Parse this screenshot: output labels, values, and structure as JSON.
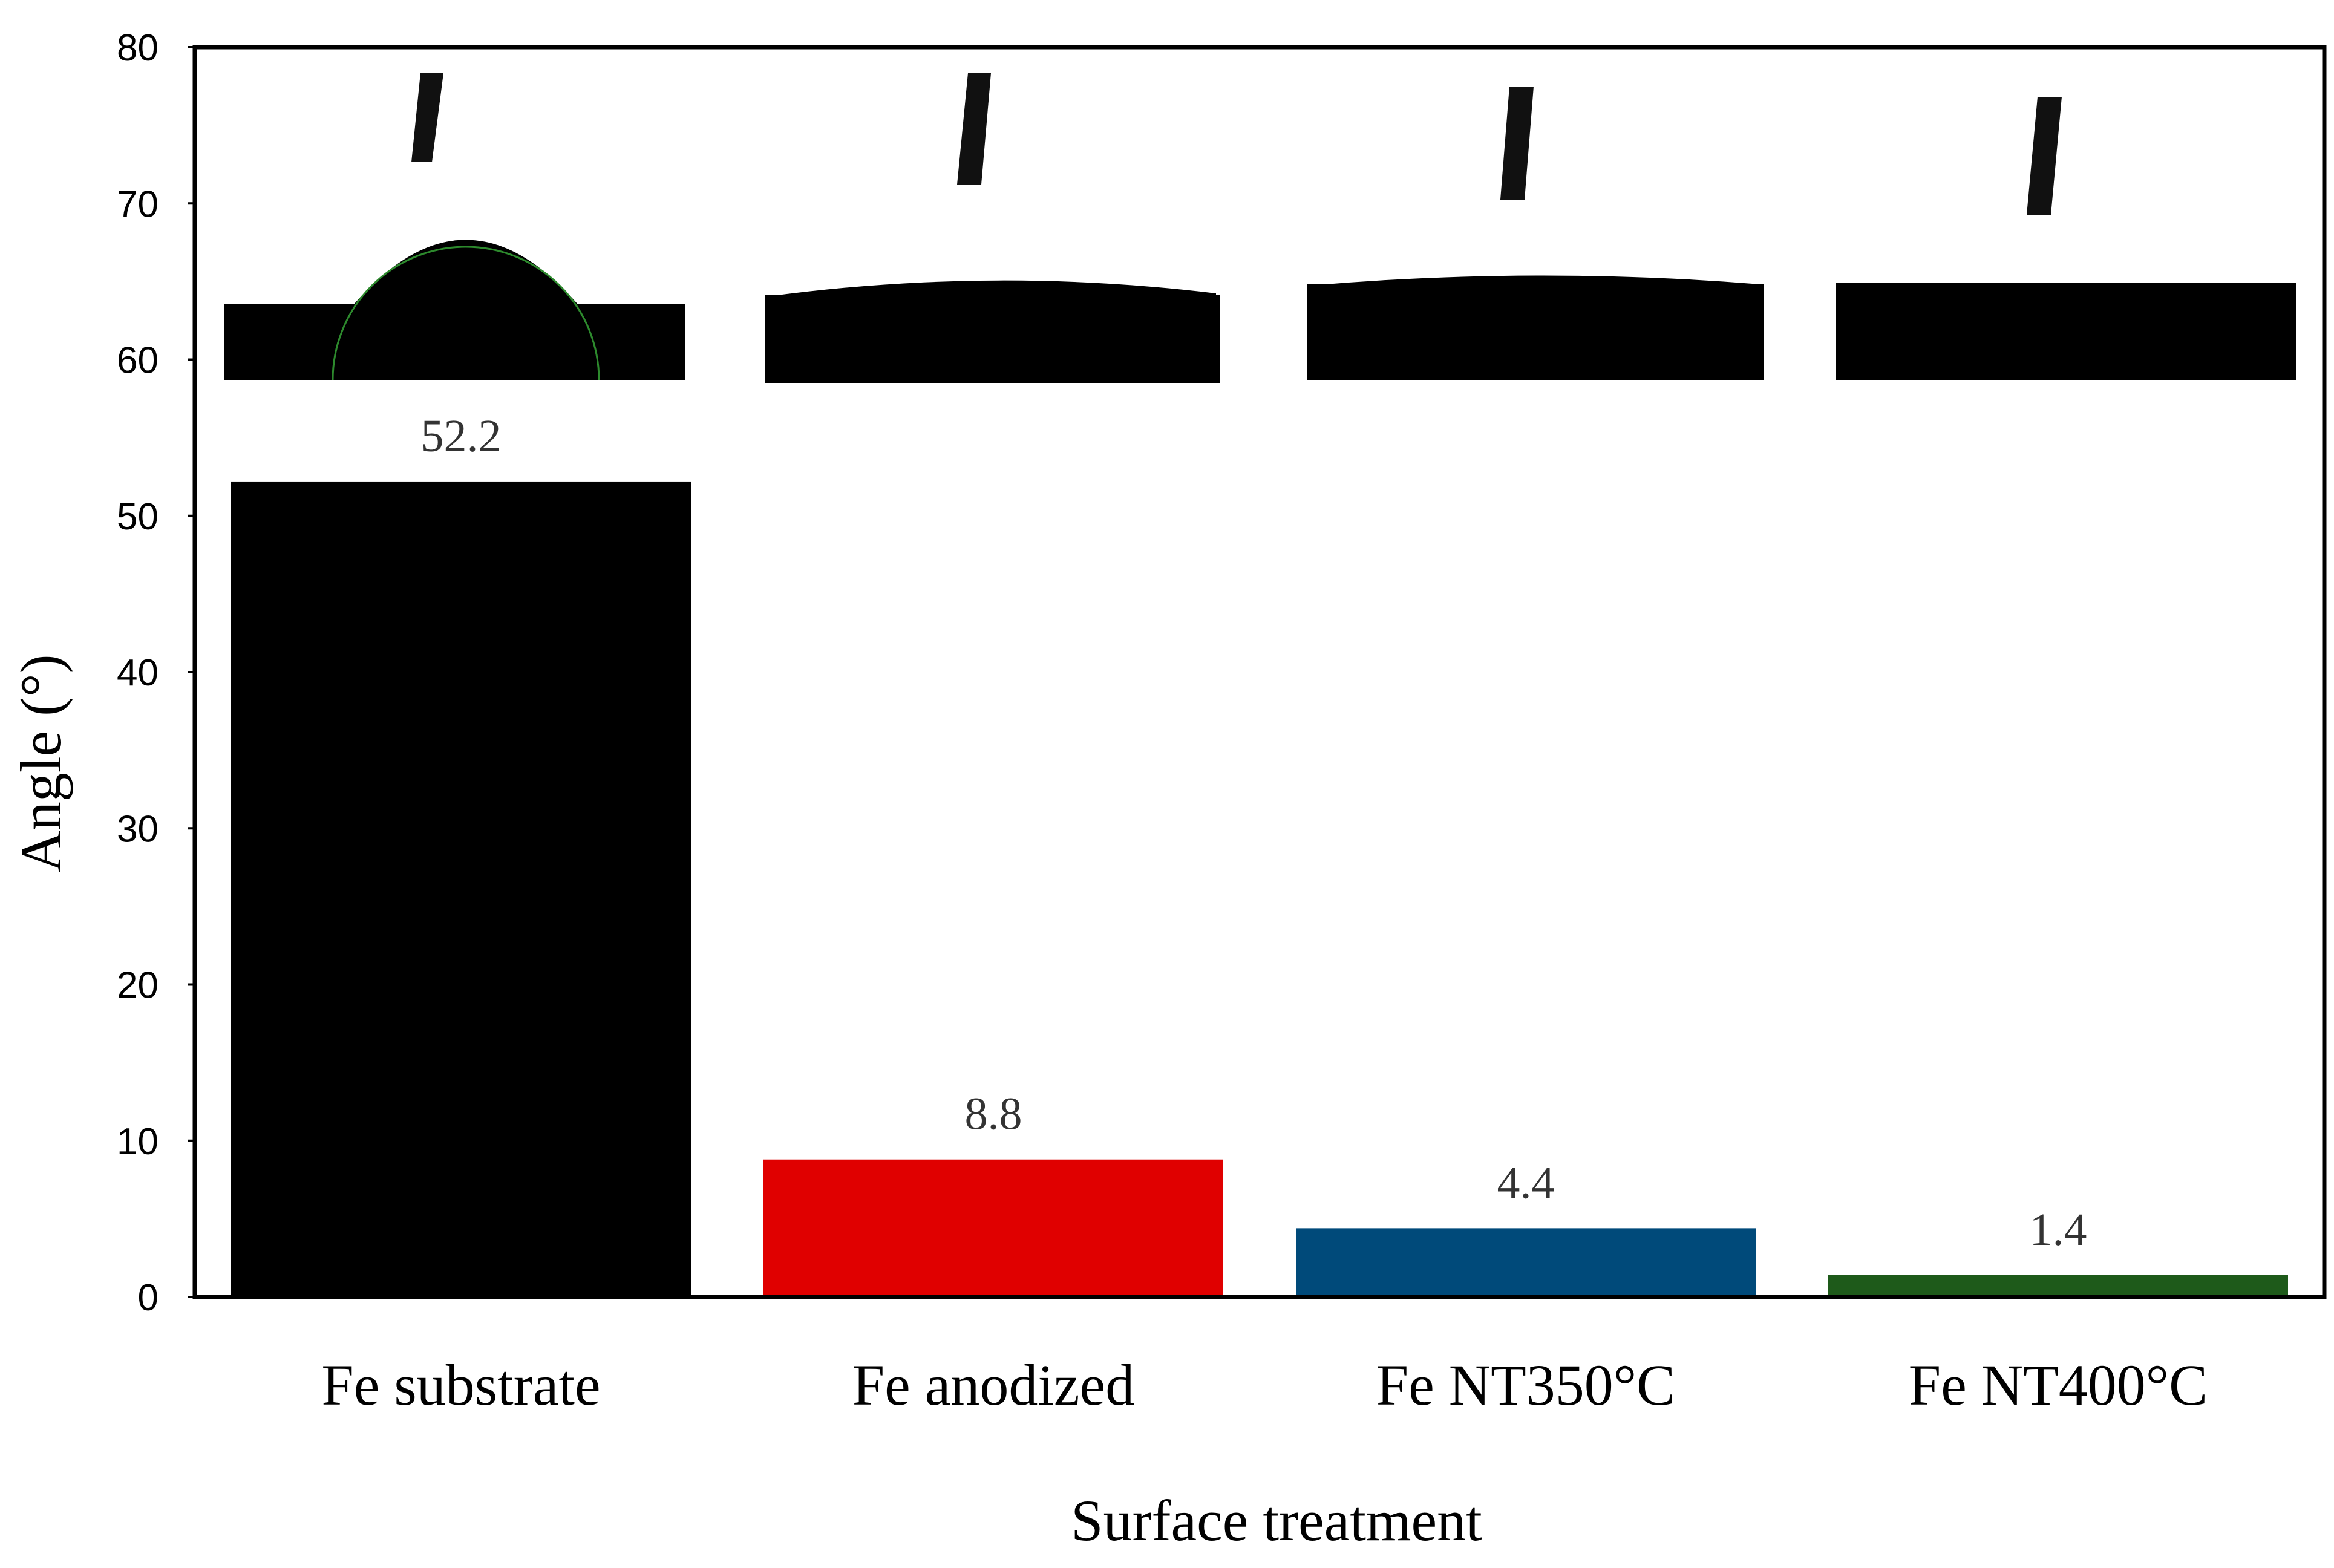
{
  "chart_data": {
    "type": "bar",
    "categories": [
      "Fe substrate",
      "Fe anodized",
      "Fe NT350°C",
      "Fe NT400°C"
    ],
    "values": [
      52.2,
      8.8,
      4.4,
      1.4
    ],
    "value_labels": [
      "52.2",
      "8.8",
      "4.4",
      "1.4"
    ],
    "colors": [
      "#000000",
      "#e00000",
      "#004a7a",
      "#1e5a1a"
    ],
    "xlabel": "Surface treatment",
    "ylabel": "Angle (°)",
    "ylim": [
      0,
      80
    ],
    "yticks": [
      0,
      10,
      20,
      30,
      40,
      50,
      60,
      70,
      80
    ],
    "grid": false,
    "legend": "none",
    "inset_images": [
      "droplet-fe-substrate",
      "droplet-fe-anodized",
      "droplet-fe-nt350",
      "droplet-fe-nt400"
    ]
  }
}
